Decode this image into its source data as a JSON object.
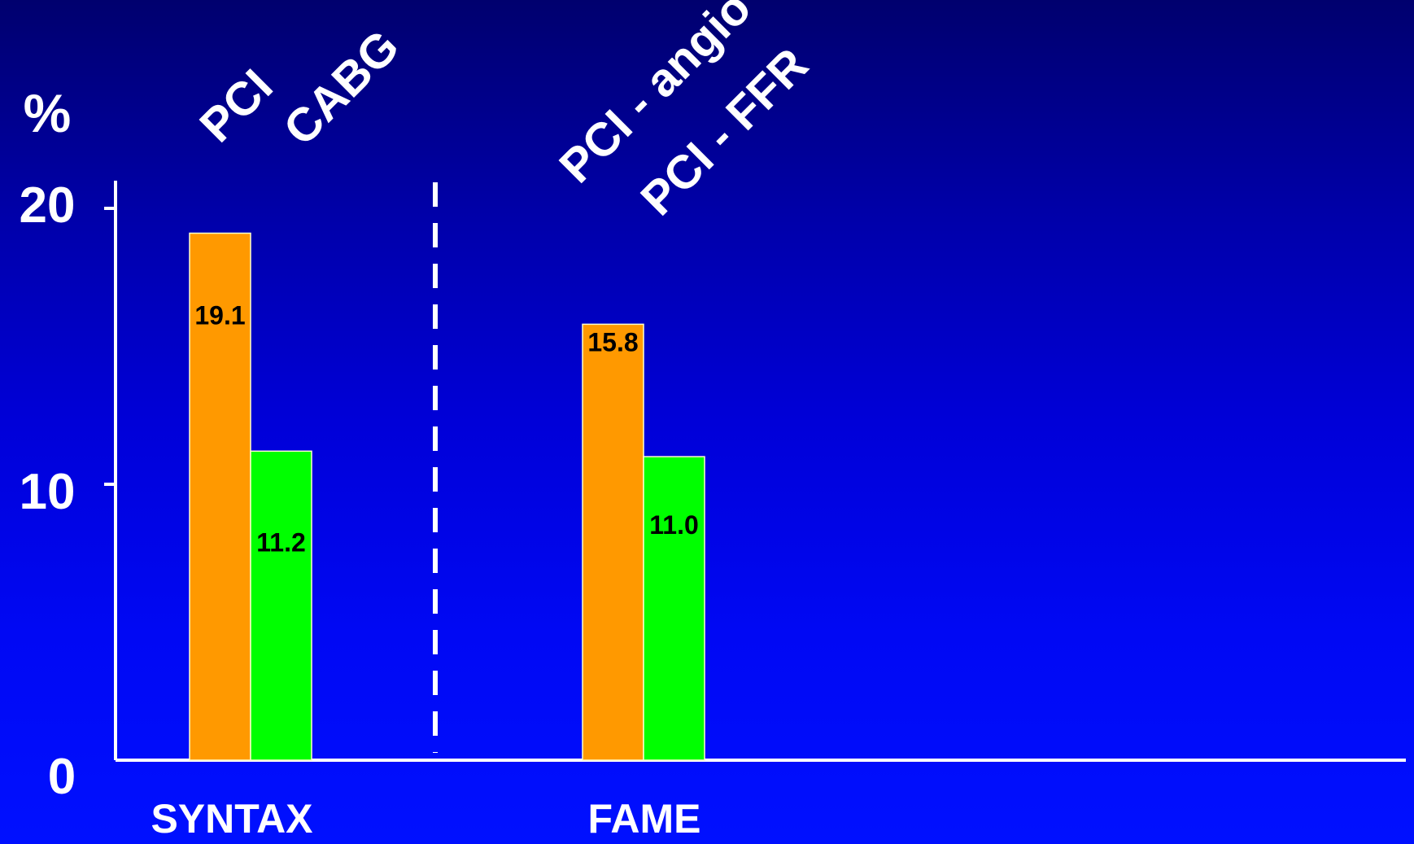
{
  "chart_data": {
    "type": "bar",
    "ylabel": "%",
    "ylim": [
      0,
      20
    ],
    "yticks": [
      0,
      10,
      20
    ],
    "categories": [
      "SYNTAX",
      "FAME"
    ],
    "groups": [
      {
        "category": "SYNTAX",
        "bars": [
          {
            "label": "PCI",
            "value": 19.1,
            "data_label": "19.1",
            "color": "#ff9900"
          },
          {
            "label": "CABG",
            "value": 11.2,
            "data_label": "11.2",
            "color": "#00ff00"
          }
        ]
      },
      {
        "category": "FAME",
        "bars": [
          {
            "label": "PCI - angio",
            "value": 15.8,
            "data_label": "15.8",
            "color": "#ff9900"
          },
          {
            "label": "PCI -  FFR",
            "value": 11.0,
            "data_label": "11.0",
            "color": "#00ff00"
          }
        ]
      }
    ],
    "grid": false,
    "legend": "none",
    "separator": "dashed vertical line between groups",
    "colors": {
      "background_top": "#00006e",
      "background_bottom": "#0010ff",
      "axis": "#ffffff",
      "text": "#ffffff",
      "data_label": "#000000"
    }
  }
}
